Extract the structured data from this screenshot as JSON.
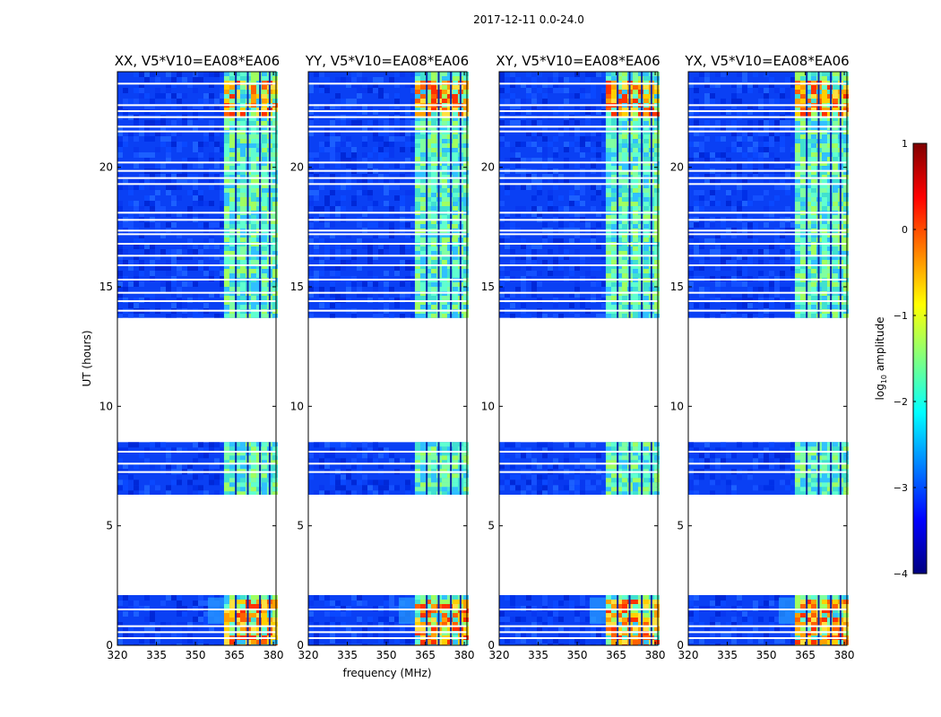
{
  "chart_data": {
    "type": "heatmap",
    "suptitle": "2017-12-11 0.0-24.0",
    "xlabel": "frequency (MHz)",
    "ylabel": "UT (hours)",
    "xlim": [
      320,
      381
    ],
    "ylim": [
      0,
      24
    ],
    "xticks": [
      "320",
      "335",
      "350",
      "365",
      "380"
    ],
    "yticks": [
      "0",
      "5",
      "10",
      "15",
      "20"
    ],
    "colorbar": {
      "label": "log10 amplitude",
      "label_main": "log",
      "label_sub": "10",
      "label_rest": " amplitude",
      "range": [
        -4,
        1
      ],
      "ticks": [
        "1",
        "0",
        "−1",
        "−2",
        "−3",
        "−4"
      ],
      "colormap": "jet"
    },
    "observed_ut_ranges": [
      [
        0.0,
        2.1
      ],
      [
        6.3,
        8.5
      ],
      [
        13.7,
        24.0
      ]
    ],
    "bright_band_mhz": [
      361,
      380
    ],
    "panels": [
      {
        "name": "XX",
        "title": "XX, V5*V10=EA08*EA06"
      },
      {
        "name": "YY",
        "title": "YY, V5*V10=EA08*EA06"
      },
      {
        "name": "XY",
        "title": "XY, V5*V10=EA08*EA06"
      },
      {
        "name": "YX",
        "title": "YX, V5*V10=EA08*EA06"
      }
    ]
  }
}
